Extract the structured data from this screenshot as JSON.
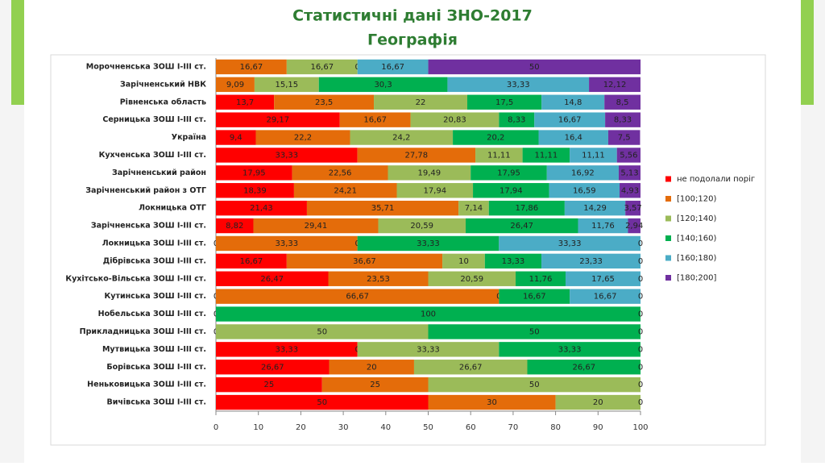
{
  "chart_data": {
    "type": "stacked-barh",
    "title": "Статистичні дані  ЗНО-2017",
    "subtitle": "Географія",
    "categories": [
      "Морочненська ЗОШ І-ІІІ ст.",
      "Зарічненський  НВК",
      "Рівненська  область",
      "Серницька ЗОШ І-ІІІ ст.",
      "Україна",
      "Кухченська ЗОШ І-ІІІ ст.",
      "Зарічненський  район",
      "Зарічненський  район з ОТГ",
      "Локницька  ОТГ",
      "Зарічненська ЗОШ І-ІІІ ст.",
      "Локницька ЗОШ І-ІІІ ст.",
      "Дібрівська ЗОШ І-ІІІ ст.",
      "Кухітсько-Вільська ЗОШ І-ІІІ ст.",
      "Кутинська ЗОШ І-ІІІ ст.",
      "Нобельська ЗОШ І-ІІІ ст.",
      "Прикладницька ЗОШ І-ІІІ ст.",
      "Мутвицька ЗОШ І-ІІІ ст.",
      "Борівська ЗОШ І-ІІІ ст.",
      "Неньковицька ЗОШ І-ІІІ ст.",
      "Вичівська ЗОШ І-ІІІ ст."
    ],
    "series": [
      {
        "name": "не подолали поріг",
        "color": "#ff0000",
        "values": [
          0,
          0,
          13.7,
          29.17,
          9.4,
          33.33,
          17.95,
          18.39,
          21.43,
          8.82,
          0,
          16.67,
          26.47,
          0,
          0,
          0,
          33.33,
          26.67,
          25,
          50
        ],
        "value_labels": [
          null,
          null,
          "13,7",
          "29,17",
          "9,4",
          "33,33",
          "17,95",
          "18,39",
          "21,43",
          "8,82",
          "0",
          "16,67",
          "26,47",
          "0",
          "0",
          "0",
          "33,33",
          "26,67",
          "25",
          "50"
        ]
      },
      {
        "name": "[100;120)",
        "color": "#e46c0a",
        "values": [
          16.67,
          9.09,
          23.5,
          16.67,
          22.2,
          27.78,
          22.56,
          24.21,
          35.71,
          29.41,
          33.33,
          36.67,
          23.53,
          66.67,
          0,
          0,
          0,
          20,
          25,
          30
        ],
        "value_labels": [
          "16,67",
          "9,09",
          "23,5",
          "16,67",
          "22,2",
          "27,78",
          "22,56",
          "24,21",
          "35,71",
          "29,41",
          "33,33",
          "36,67",
          "23,53",
          "66,67",
          null,
          null,
          "0",
          "20",
          "25",
          "30"
        ]
      },
      {
        "name": "[120;140)",
        "color": "#9bbb59",
        "values": [
          16.67,
          15.15,
          22,
          20.83,
          24.2,
          11.11,
          19.49,
          17.94,
          7.14,
          20.59,
          0,
          10,
          20.59,
          0,
          0,
          50,
          33.33,
          26.67,
          50,
          20
        ],
        "value_labels": [
          "16,67",
          "15,15",
          "22",
          "20,83",
          "24,2",
          "11,11",
          "19,49",
          "17,94",
          "7,14",
          "20,59",
          "0",
          "10",
          "20,59",
          "0",
          null,
          "50",
          "33,33",
          "26,67",
          "50",
          "20"
        ]
      },
      {
        "name": "[140;160)",
        "color": "#00b050",
        "values": [
          0,
          30.3,
          17.5,
          8.33,
          20.2,
          11.11,
          17.95,
          17.94,
          17.86,
          26.47,
          33.33,
          13.33,
          11.76,
          16.67,
          100,
          50,
          33.33,
          26.67,
          0,
          0
        ],
        "value_labels": [
          "0",
          "30,3",
          "17,5",
          "8,33",
          "20,2",
          "11,11",
          "17,95",
          "17,94",
          "17,86",
          "26,47",
          "33,33",
          "13,33",
          "11,76",
          "16,67",
          "100",
          "50",
          "33,33",
          "26,67",
          null,
          null
        ]
      },
      {
        "name": "[160;180)",
        "color": "#4bacc6",
        "values": [
          16.67,
          33.33,
          14.8,
          16.67,
          16.4,
          11.11,
          16.92,
          16.59,
          14.29,
          11.76,
          33.33,
          23.33,
          17.65,
          16.67,
          0,
          0,
          0,
          0,
          0,
          0
        ],
        "value_labels": [
          "16,67",
          "33,33",
          "14,8",
          "16,67",
          "16,4",
          "11,11",
          "16,92",
          "16,59",
          "14,29",
          "11,76",
          "33,33",
          "23,33",
          "17,65",
          "16,67",
          null,
          null,
          null,
          null,
          null,
          null
        ]
      },
      {
        "name": "[180;200]",
        "color": "#7030a0",
        "values": [
          50,
          12.12,
          8.5,
          8.33,
          7.5,
          5.56,
          5.13,
          4.93,
          3.57,
          2.94,
          0,
          0,
          0,
          0,
          0,
          0,
          0,
          0,
          0,
          0
        ],
        "value_labels": [
          "50",
          "12,12",
          "8,5",
          "8,33",
          "7,5",
          "5,56",
          "5,13",
          "4,93",
          "3,57",
          "2,94",
          "0",
          "0",
          "0",
          "0",
          "0",
          "0",
          "0",
          "0",
          "0",
          "0"
        ]
      }
    ],
    "xlim": [
      0,
      100
    ],
    "xticks": [
      0,
      10,
      20,
      30,
      40,
      50,
      60,
      70,
      80,
      90,
      100
    ],
    "legend": "right"
  }
}
